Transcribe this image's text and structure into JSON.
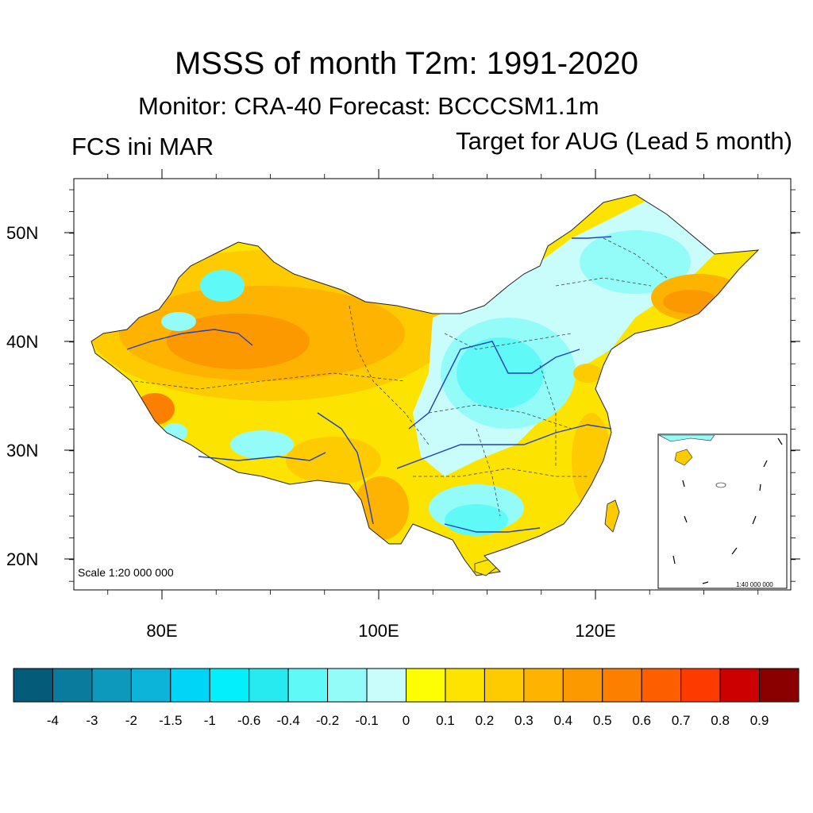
{
  "title": "MSSS of month T2m: 1991-2020",
  "subtitle": "Monitor: CRA-40   Forecast: BCCCSM1.1m",
  "left_label": "FCS ini MAR",
  "right_label": "Target for AUG (Lead 5 month)",
  "map": {
    "scale_main": "Scale 1:20 000 000",
    "scale_inset": "1:40 000 000",
    "lat_labels": [
      "50N",
      "40N",
      "30N",
      "20N"
    ],
    "lon_labels": [
      "80E",
      "100E",
      "120E"
    ]
  },
  "colorbar": {
    "colors": [
      "#045a79",
      "#0a7b9c",
      "#0d99bb",
      "#0bb4d8",
      "#00d4f7",
      "#03f0fa",
      "#26eaf0",
      "#5ffaf8",
      "#93fcf8",
      "#c8fdfb",
      "#fdfd04",
      "#fde300",
      "#fdcb00",
      "#fdb300",
      "#fd9900",
      "#fd7f00",
      "#fd5f00",
      "#fd3a00",
      "#cc0000",
      "#8a0000"
    ],
    "labels": [
      "-4",
      "-3",
      "-2",
      "-1.5",
      "-1",
      "-0.6",
      "-0.4",
      "-0.2",
      "-0.1",
      "0",
      "0.1",
      "0.2",
      "0.3",
      "0.4",
      "0.5",
      "0.6",
      "0.7",
      "0.8",
      "0.9"
    ]
  }
}
